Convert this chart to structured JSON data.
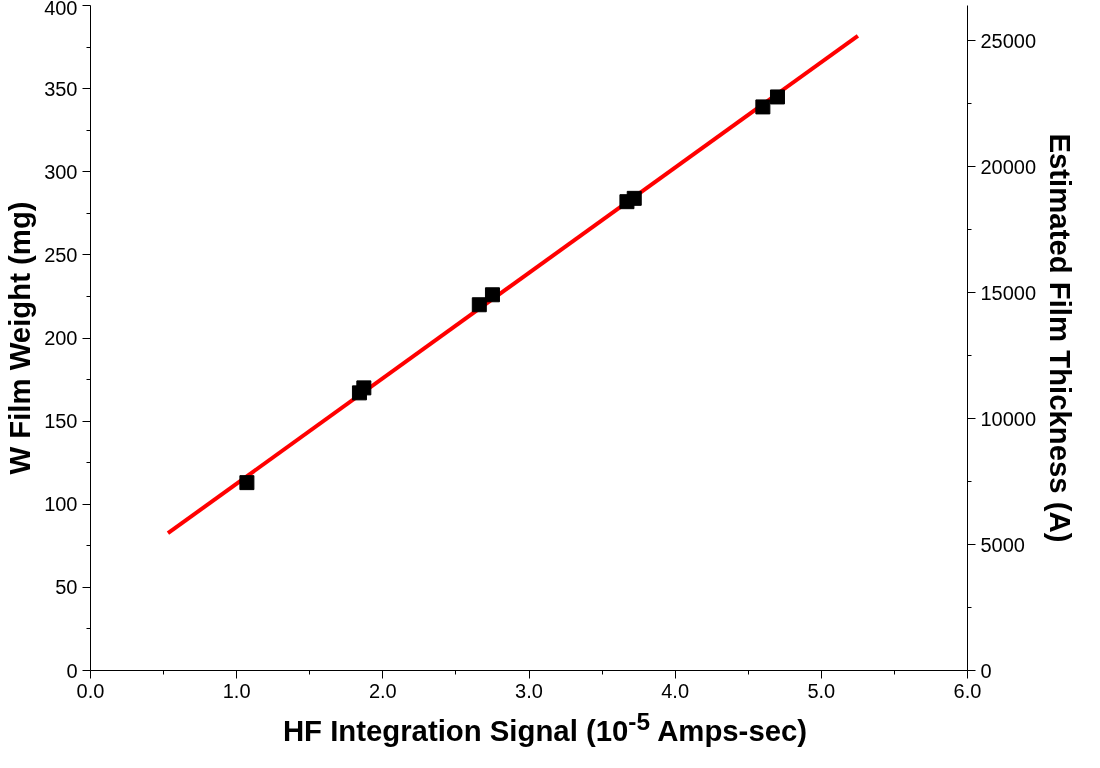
{
  "chart_data": {
    "type": "scatter",
    "xlabel": "HF Integration Signal (10$^{-5}$ Amps-sec)",
    "ylabel": "W Film Weight (mg)",
    "y2label": "Estimated Film Thickness (A)",
    "xlim": [
      0,
      6
    ],
    "xticks": [
      {
        "value": 0,
        "label": "0.0"
      },
      {
        "value": 1,
        "label": "1.0"
      },
      {
        "value": 2,
        "label": "2.0"
      },
      {
        "value": 3,
        "label": "3.0"
      },
      {
        "value": 4,
        "label": "4.0"
      },
      {
        "value": 5,
        "label": "5.0"
      },
      {
        "value": 6,
        "label": "6.0"
      }
    ],
    "ylim": [
      0,
      400
    ],
    "yticks": [
      0,
      50,
      100,
      150,
      200,
      250,
      300,
      350,
      400
    ],
    "y2lim": [
      0,
      26400
    ],
    "y2ticks": [
      0,
      5000,
      10000,
      15000,
      20000,
      25000
    ],
    "grid": false,
    "series": [
      {
        "type": "line",
        "color": "#ff0000",
        "line_style": "solid",
        "marker": "none",
        "x": [
          0.53,
          5.25
        ],
        "values": [
          82.6,
          381.8
        ]
      },
      {
        "color": "#000000",
        "marker": "square",
        "x": [
          1.07,
          1.84,
          1.87,
          2.66,
          2.75,
          3.67,
          3.72,
          4.6,
          4.7
        ],
        "values": [
          113,
          167,
          170,
          220,
          226,
          282,
          284,
          339,
          345
        ]
      }
    ]
  }
}
